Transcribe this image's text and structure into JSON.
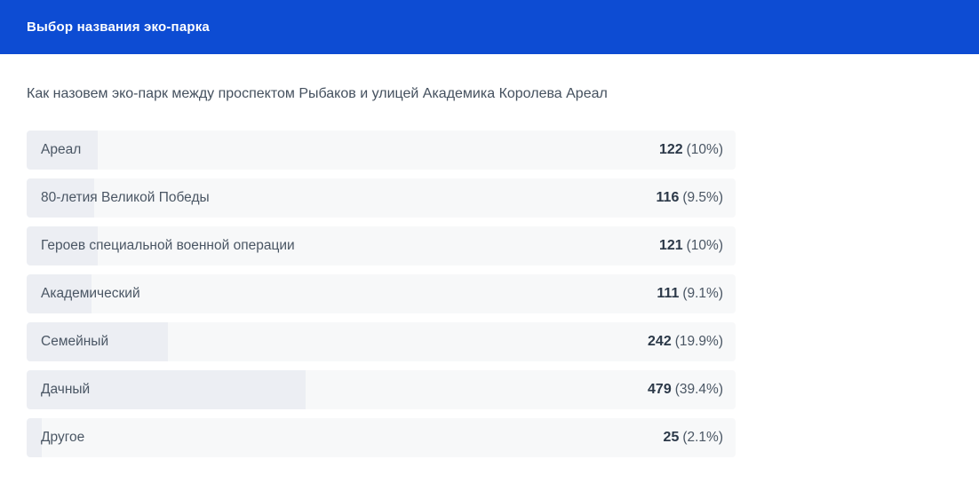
{
  "header": {
    "title": "Выбор названия эко-парка",
    "background_color": "#0d4cd3"
  },
  "poll": {
    "question": "Как назовем эко-парк между проспектом Рыбаков и улицей Академика Королева Ареал",
    "options": [
      {
        "label": "Ареал",
        "count": "122",
        "percent_label": "(10%)",
        "bar_width": "10%"
      },
      {
        "label": "80-летия Великой Победы",
        "count": "116",
        "percent_label": "(9.5%)",
        "bar_width": "9.5%"
      },
      {
        "label": "Героев специальной военной операции",
        "count": "121",
        "percent_label": "(10%)",
        "bar_width": "10%"
      },
      {
        "label": "Академический",
        "count": "111",
        "percent_label": "(9.1%)",
        "bar_width": "9.1%"
      },
      {
        "label": "Семейный",
        "count": "242",
        "percent_label": "(19.9%)",
        "bar_width": "19.9%"
      },
      {
        "label": "Дачный",
        "count": "479",
        "percent_label": "(39.4%)",
        "bar_width": "39.4%"
      },
      {
        "label": "Другое",
        "count": "25",
        "percent_label": "(2.1%)",
        "bar_width": "2.1%"
      }
    ]
  },
  "chart_data": {
    "type": "bar",
    "orientation": "horizontal",
    "title": "Как назовем эко-парк между проспектом Рыбаков и улицей Академика Королева Ареал",
    "categories": [
      "Ареал",
      "80-летия Великой Победы",
      "Героев специальной военной операции",
      "Академический",
      "Семейный",
      "Дачный",
      "Другое"
    ],
    "values": [
      122,
      116,
      121,
      111,
      242,
      479,
      25
    ],
    "percentages": [
      10,
      9.5,
      10,
      9.1,
      19.9,
      39.4,
      2.1
    ]
  },
  "colors": {
    "accent_blue": "#0d4cd3",
    "row_background": "#f7f8f9",
    "bar_fill": "#eceef3",
    "question_text": "#44505e",
    "count_text": "#2b3848"
  }
}
